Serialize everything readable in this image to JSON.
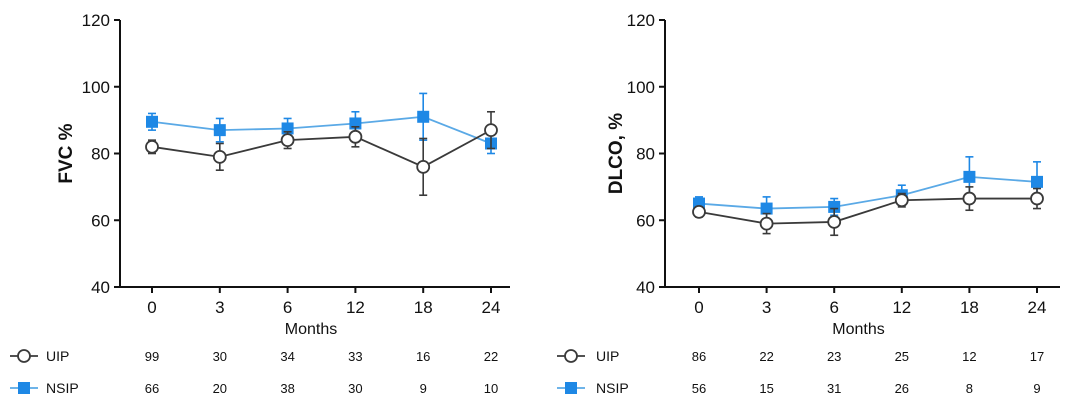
{
  "colors": {
    "uip": "#3a3a3a",
    "nsip": "#1e88e5",
    "nsip_line": "#5aa9e6",
    "axis": "#111111"
  },
  "chart_data": [
    {
      "type": "line",
      "ylabel": "FVC %",
      "xlabel": "Months",
      "categories": [
        "0",
        "3",
        "6",
        "12",
        "18",
        "24"
      ],
      "ylim": [
        40,
        120
      ],
      "yticks": [
        "40",
        "60",
        "80",
        "100",
        "120"
      ],
      "series": [
        {
          "name": "UIP",
          "marker": "open-circle",
          "values": [
            82,
            79,
            84,
            85,
            76,
            87
          ],
          "err": [
            2,
            4,
            2.5,
            3,
            8.5,
            5.5
          ],
          "n_at_risk": [
            "99",
            "30",
            "34",
            "33",
            "16",
            "22"
          ]
        },
        {
          "name": "NSIP",
          "marker": "filled-square",
          "values": [
            89.5,
            87,
            87.5,
            89,
            91,
            83
          ],
          "err": [
            2.5,
            3.5,
            3,
            3.5,
            7,
            3
          ],
          "n_at_risk": [
            "66",
            "20",
            "38",
            "30",
            "9",
            "10"
          ]
        }
      ]
    },
    {
      "type": "line",
      "ylabel": "DLCO, %",
      "xlabel": "Months",
      "categories": [
        "0",
        "3",
        "6",
        "12",
        "18",
        "24"
      ],
      "ylim": [
        40,
        120
      ],
      "yticks": [
        "40",
        "60",
        "80",
        "100",
        "120"
      ],
      "series": [
        {
          "name": "UIP",
          "marker": "open-circle",
          "values": [
            62.5,
            59,
            59.5,
            66,
            66.5,
            66.5
          ],
          "err": [
            1.5,
            3,
            4,
            2,
            3.5,
            3
          ],
          "n_at_risk": [
            "86",
            "22",
            "23",
            "25",
            "12",
            "17"
          ]
        },
        {
          "name": "NSIP",
          "marker": "filled-square",
          "values": [
            65,
            63.5,
            64,
            67.5,
            73,
            71.5
          ],
          "err": [
            2,
            3.5,
            2.5,
            3,
            6,
            6
          ],
          "n_at_risk": [
            "56",
            "15",
            "31",
            "26",
            "8",
            "9"
          ]
        }
      ]
    }
  ]
}
